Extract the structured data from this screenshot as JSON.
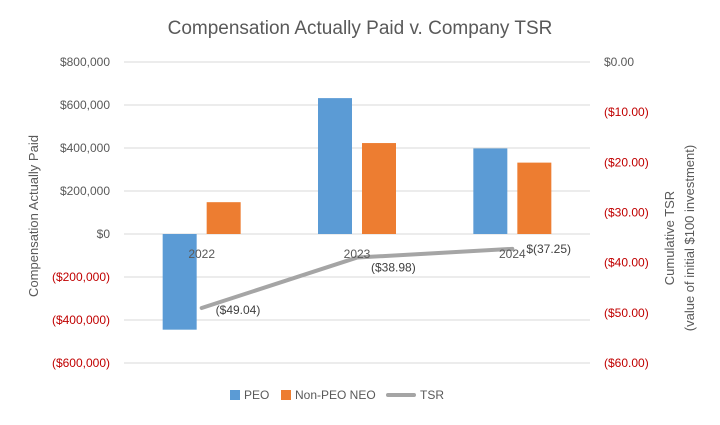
{
  "chart_data": {
    "type": "bar",
    "title": "Compensation  Actually Paid v. Company TSR",
    "categories": [
      "2022",
      "2023",
      "2024"
    ],
    "series": [
      {
        "name": "PEO",
        "kind": "bar",
        "axis": "left",
        "color": "#5B9BD5",
        "values": [
          -445000,
          632000,
          398000
        ]
      },
      {
        "name": "Non-PEO NEO",
        "kind": "bar",
        "axis": "left",
        "color": "#ED7D31",
        "values": [
          148000,
          423000,
          332000
        ]
      },
      {
        "name": "TSR",
        "kind": "line",
        "axis": "right",
        "color": "#A5A5A5",
        "values": [
          -49.04,
          -38.98,
          -37.25
        ],
        "labels": [
          "($49.04)",
          "($38.98)",
          "$(37.25)"
        ]
      }
    ],
    "ylabel": "Compensation Actually Paid",
    "ylabel_right": [
      "Cumulative TSR",
      "(value of initial $100 investment)"
    ],
    "ylim": [
      -600000,
      800000
    ],
    "ylim_right": [
      -60,
      0
    ],
    "yticks": [
      {
        "value": 800000,
        "label": "$800,000",
        "color": "#595959"
      },
      {
        "value": 600000,
        "label": "$600,000",
        "color": "#595959"
      },
      {
        "value": 400000,
        "label": "$400,000",
        "color": "#595959"
      },
      {
        "value": 200000,
        "label": "$200,000",
        "color": "#595959"
      },
      {
        "value": 0,
        "label": "$0",
        "color": "#595959"
      },
      {
        "value": -200000,
        "label": "($200,000)",
        "color": "#C00000"
      },
      {
        "value": -400000,
        "label": "($400,000)",
        "color": "#C00000"
      },
      {
        "value": -600000,
        "label": "($600,000)",
        "color": "#C00000"
      }
    ],
    "yticks_right": [
      {
        "value": 0,
        "label": "$0.00",
        "color": "#595959"
      },
      {
        "value": -10,
        "label": "($10.00)",
        "color": "#C00000"
      },
      {
        "value": -20,
        "label": "($20.00)",
        "color": "#C00000"
      },
      {
        "value": -30,
        "label": "($30.00)",
        "color": "#C00000"
      },
      {
        "value": -40,
        "label": "($40.00)",
        "color": "#C00000"
      },
      {
        "value": -50,
        "label": "($50.00)",
        "color": "#C00000"
      },
      {
        "value": -60,
        "label": "($60.00)",
        "color": "#C00000"
      }
    ],
    "grid": true,
    "legend": "bottom",
    "gridline_color": "#D9D9D9"
  }
}
